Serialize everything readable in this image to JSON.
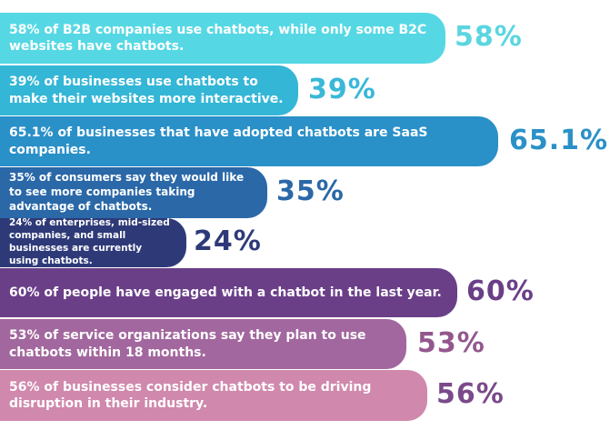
{
  "chart_data": {
    "type": "bar",
    "orientation": "horizontal",
    "bars": [
      {
        "text": "58% of B2B companies use chatbots, while only some B2C websites have chatbots.",
        "value": 58,
        "label": "58%",
        "color": "#56d8e4",
        "label_color": "#5ad6e0"
      },
      {
        "text": "39% of businesses use chatbots to make their websites more interactive.",
        "value": 39,
        "label": "39%",
        "color": "#34b6d6",
        "label_color": "#3ab8d8"
      },
      {
        "text": "65.1% of businesses that have adopted chatbots are SaaS companies.",
        "value": 65.1,
        "label": "65.1%",
        "color": "#2a90c8",
        "label_color": "#2a90c8"
      },
      {
        "text": "35% of consumers say they would like to see more companies taking advantage of chatbots.",
        "value": 35,
        "label": "35%",
        "color": "#2a68a8",
        "label_color": "#2a68a8"
      },
      {
        "text": "24% of enterprises, mid-sized companies, and small businesses are currently using chatbots.",
        "value": 24,
        "label": "24%",
        "color": "#2e3a78",
        "label_color": "#2e3a78"
      },
      {
        "text": "60% of people have engaged with a chatbot in the last year.",
        "value": 60,
        "label": "60%",
        "color": "#6a3f88",
        "label_color": "#6a3f88"
      },
      {
        "text": "53% of service organizations say they plan to use chatbots within 18 months.",
        "value": 53,
        "label": "53%",
        "color": "#a2679e",
        "label_color": "#93578e"
      },
      {
        "text": "56% of businesses consider chatbots to be driving disruption in their industry.",
        "value": 56,
        "label": "56%",
        "color": "#d088ac",
        "label_color": "#7a4a8a"
      }
    ]
  }
}
